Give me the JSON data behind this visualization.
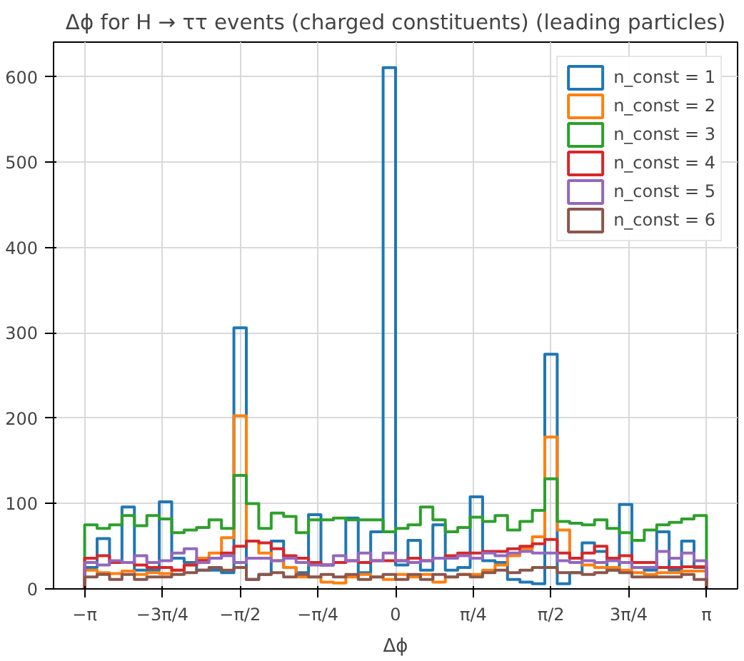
{
  "chart_data": {
    "type": "histogram",
    "title": "Δϕ for H → ττ events (charged constituents) (leading particles)",
    "xlabel": "Δϕ",
    "bins": [
      -3.1416,
      -3.0159,
      -2.8903,
      -2.7646,
      -2.6389,
      -2.5133,
      -2.3876,
      -2.2619,
      -2.1363,
      -2.0106,
      -1.885,
      -1.7593,
      -1.6336,
      -1.508,
      -1.3823,
      -1.2566,
      -1.131,
      -1.0053,
      -0.8796,
      -0.754,
      -0.6283,
      -0.5027,
      -0.377,
      -0.2513,
      -0.1257,
      0,
      0.1257,
      0.2513,
      0.377,
      0.5027,
      0.6283,
      0.754,
      0.8796,
      1.0053,
      1.131,
      1.2566,
      1.3823,
      1.508,
      1.6336,
      1.7593,
      1.885,
      2.0106,
      2.1363,
      2.2619,
      2.3876,
      2.5133,
      2.6389,
      2.7646,
      2.8903,
      3.0159,
      3.1416
    ],
    "series": [
      {
        "name": "n_const = 1",
        "color": "#1f77b4",
        "values": [
          25,
          59,
          31,
          96,
          22,
          22,
          102,
          36,
          31,
          22,
          22,
          19,
          306,
          11,
          17,
          56,
          25,
          19,
          87,
          28,
          31,
          83,
          19,
          67,
          611,
          28,
          57,
          22,
          75,
          22,
          25,
          108,
          33,
          31,
          11,
          8,
          6,
          275,
          6,
          19,
          54,
          44,
          22,
          99,
          25,
          22,
          67,
          22,
          56,
          25
        ]
      },
      {
        "name": "n_const = 2",
        "color": "#ff7f0e",
        "values": [
          22,
          19,
          18,
          21,
          17,
          19,
          18,
          22,
          28,
          36,
          42,
          60,
          203,
          56,
          42,
          33,
          25,
          14,
          14,
          8,
          7,
          14,
          17,
          14,
          11,
          17,
          14,
          17,
          8,
          14,
          17,
          17,
          22,
          28,
          39,
          47,
          61,
          178,
          69,
          36,
          28,
          25,
          25,
          22,
          19,
          17,
          19,
          19,
          21,
          21
        ]
      },
      {
        "name": "n_const = 3",
        "color": "#2ca02c",
        "values": [
          75,
          71,
          75,
          86,
          74,
          86,
          82,
          66,
          69,
          72,
          81,
          71,
          133,
          100,
          71,
          89,
          85,
          66,
          81,
          81,
          83,
          81,
          81,
          81,
          67,
          71,
          75,
          96,
          81,
          67,
          72,
          84,
          79,
          86,
          69,
          79,
          92,
          129,
          79,
          77,
          75,
          81,
          71,
          66,
          57,
          69,
          75,
          78,
          82,
          86
        ]
      },
      {
        "name": "n_const = 4",
        "color": "#d62728",
        "values": [
          36,
          39,
          31,
          31,
          28,
          25,
          25,
          22,
          28,
          33,
          36,
          42,
          50,
          56,
          54,
          47,
          39,
          36,
          31,
          28,
          31,
          33,
          31,
          33,
          33,
          33,
          36,
          33,
          36,
          39,
          42,
          42,
          44,
          44,
          47,
          50,
          53,
          58,
          42,
          36,
          42,
          50,
          36,
          39,
          31,
          31,
          25,
          25,
          26,
          26
        ]
      },
      {
        "name": "n_const = 5",
        "color": "#9467bd",
        "values": [
          31,
          28,
          33,
          31,
          39,
          31,
          33,
          42,
          47,
          31,
          36,
          39,
          31,
          36,
          36,
          33,
          36,
          31,
          28,
          28,
          39,
          33,
          42,
          33,
          42,
          33,
          31,
          33,
          36,
          36,
          39,
          36,
          42,
          39,
          42,
          44,
          42,
          42,
          33,
          31,
          33,
          31,
          33,
          31,
          25,
          25,
          44,
          36,
          42,
          33
        ]
      },
      {
        "name": "n_const = 6",
        "color": "#8c564b",
        "values": [
          14,
          17,
          11,
          17,
          11,
          14,
          14,
          17,
          19,
          22,
          25,
          22,
          25,
          11,
          17,
          19,
          14,
          17,
          14,
          17,
          14,
          17,
          11,
          14,
          17,
          11,
          17,
          11,
          17,
          14,
          17,
          14,
          19,
          22,
          19,
          22,
          25,
          25,
          19,
          19,
          17,
          19,
          22,
          19,
          14,
          14,
          14,
          14,
          17,
          11
        ]
      }
    ],
    "xlim": [
      -3.456,
      3.456
    ],
    "ylim": [
      0,
      641
    ],
    "xticks": [
      {
        "value": -3.1416,
        "label": "−π"
      },
      {
        "value": -2.3562,
        "label": "−3π/4"
      },
      {
        "value": -1.5708,
        "label": "−π/2"
      },
      {
        "value": -0.7854,
        "label": "−π/4"
      },
      0,
      {
        "value": 0.7854,
        "label": "π/4"
      },
      {
        "value": 1.5708,
        "label": "π/2"
      },
      {
        "value": 2.3562,
        "label": "3π/4"
      },
      {
        "value": 3.1416,
        "label": "π"
      }
    ],
    "yticks": [
      0,
      100,
      200,
      300,
      400,
      500,
      600
    ],
    "grid": true,
    "legend": "top right"
  }
}
